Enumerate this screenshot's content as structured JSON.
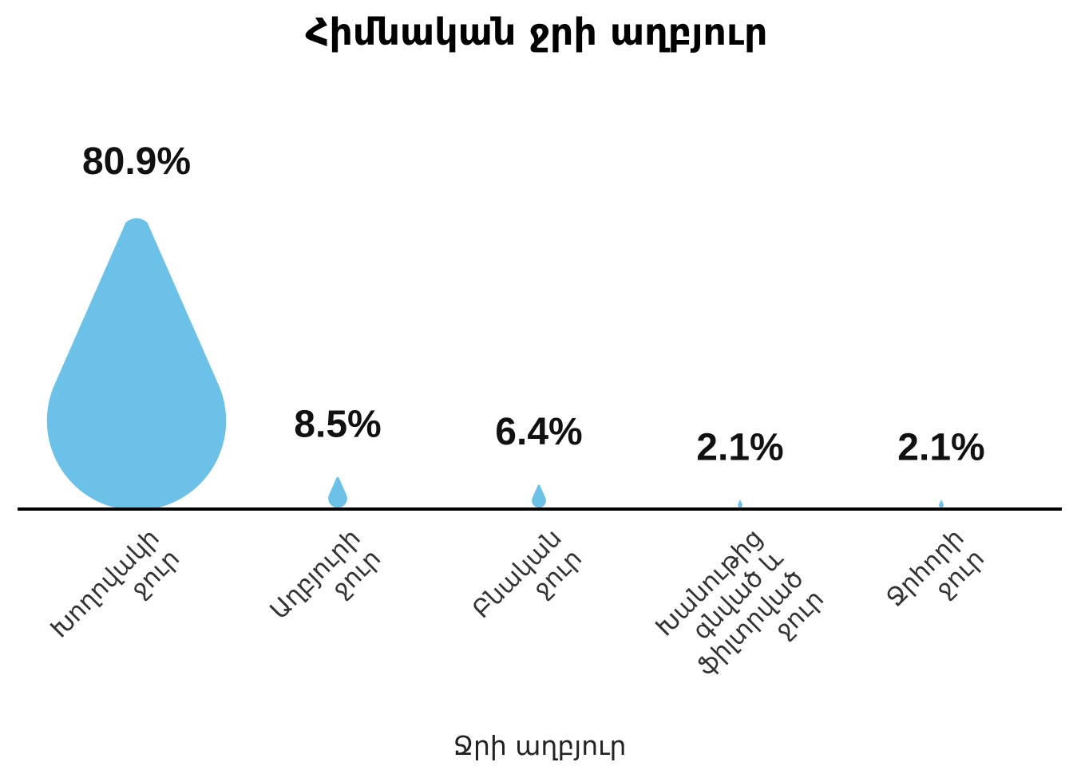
{
  "chart_data": {
    "type": "bar",
    "title": "Հիմնական ջրի աղբյուր",
    "xlabel": "Ջրի աղբյուր",
    "ylabel": "",
    "categories": [
      [
        "Խողովակի",
        "ջուր"
      ],
      [
        "Աղբյուրի",
        "ջուր"
      ],
      [
        "Բնական",
        "ջուր"
      ],
      [
        "Խանութից",
        "գնված և",
        "ֆիլտրված",
        "ջուր"
      ],
      [
        "Ջրհորի",
        "ջուր"
      ]
    ],
    "values": [
      80.9,
      8.5,
      6.4,
      2.1,
      2.1
    ],
    "value_labels": [
      "80.9%",
      "8.5%",
      "6.4%",
      "2.1%",
      "2.1%"
    ],
    "unit": "%",
    "mark_shape": "water-drop",
    "grid": false,
    "legend": "none",
    "colors": {
      "drop": "#6cc1e8",
      "baseline": "#000000",
      "text": "#111111"
    }
  }
}
